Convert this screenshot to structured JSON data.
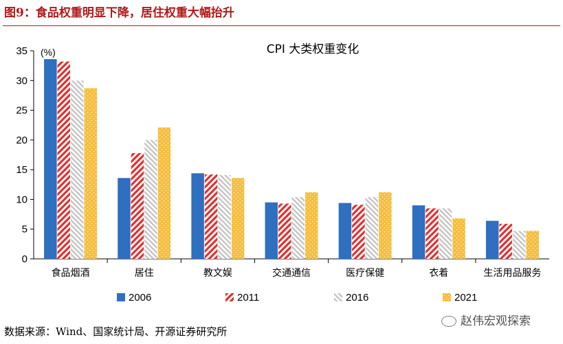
{
  "figure_title": "图9：食品权重明显下降，居住权重大幅抬升",
  "source_note": "数据来源：Wind、国家统计局、开源证券研究所",
  "watermark": "赵伟宏观探索",
  "colors": {
    "title": "#b01818",
    "s2006": "#2f6fc0",
    "s2011": "#e03030",
    "s2016": "#c8c8c8",
    "s2021": "#f5bd3f"
  },
  "chart_data": {
    "type": "bar",
    "title": "CPI 大类权重变化",
    "unit_label": "(%)",
    "ylim": [
      0,
      35
    ],
    "yticks": [
      0,
      5,
      10,
      15,
      20,
      25,
      30,
      35
    ],
    "grid": false,
    "legend_position": "bottom",
    "categories": [
      "食品烟酒",
      "居住",
      "教文娱",
      "交通通信",
      "医疗保健",
      "衣着",
      "生活用品服务"
    ],
    "series": [
      {
        "name": "2006",
        "pattern": "solid",
        "color": "#2f6fc0",
        "values": [
          33.6,
          13.6,
          14.4,
          9.5,
          9.4,
          9.0,
          6.4
        ]
      },
      {
        "name": "2011",
        "pattern": "hatch",
        "color": "#e03030",
        "values": [
          33.2,
          17.8,
          14.2,
          9.3,
          9.1,
          8.5,
          5.9
        ]
      },
      {
        "name": "2016",
        "pattern": "stripe",
        "color": "#c8c8c8",
        "values": [
          30.0,
          20.0,
          14.1,
          10.4,
          10.4,
          8.5,
          4.7
        ]
      },
      {
        "name": "2021",
        "pattern": "dots",
        "color": "#f5bd3f",
        "values": [
          28.7,
          22.1,
          13.6,
          11.2,
          11.2,
          6.8,
          4.7
        ]
      }
    ]
  }
}
